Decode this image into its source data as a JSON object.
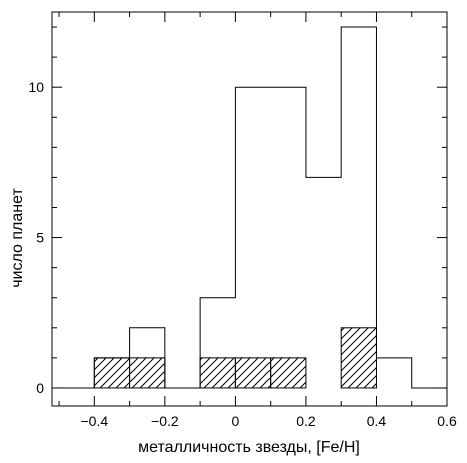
{
  "chart_data": {
    "type": "bar",
    "subtype": "step-histogram",
    "title": "",
    "xlabel": "металличность звезды, [Fe/H]",
    "ylabel": "число планет",
    "xlim": [
      -0.52,
      0.6
    ],
    "ylim": [
      -0.6,
      12.5
    ],
    "x_ticks": [
      -0.4,
      -0.2,
      0,
      0.2,
      0.4,
      0.6
    ],
    "x_tick_labels": [
      "−0.4",
      "−0.2",
      "0",
      "0.2",
      "0.4",
      "0.6"
    ],
    "y_ticks": [
      0,
      5,
      10
    ],
    "y_tick_labels": [
      "0",
      "5",
      "10"
    ],
    "grid": false,
    "legend": "none",
    "bin_width": 0.1,
    "bin_edges": [
      -0.5,
      -0.4,
      -0.3,
      -0.2,
      -0.1,
      0.0,
      0.1,
      0.2,
      0.3,
      0.4,
      0.5,
      0.6
    ],
    "series": [
      {
        "style": "outline",
        "values": [
          0,
          1,
          2,
          0,
          3,
          10,
          10,
          7,
          12,
          1,
          0
        ]
      },
      {
        "style": "hatched",
        "values": [
          0,
          1,
          1,
          0,
          1,
          1,
          1,
          0,
          2,
          0,
          0
        ]
      }
    ]
  }
}
